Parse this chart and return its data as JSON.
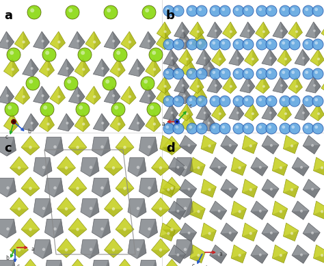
{
  "figure_width": 4.74,
  "figure_height": 3.89,
  "dpi": 100,
  "background_color": "#ffffff",
  "yellow_rgb": [
    0.78,
    0.82,
    0.15
  ],
  "yellow_dark_rgb": [
    0.55,
    0.58,
    0.05
  ],
  "gray_rgb": [
    0.52,
    0.54,
    0.56
  ],
  "gray_dark_rgb": [
    0.32,
    0.33,
    0.35
  ],
  "blue_rgb": [
    0.38,
    0.65,
    0.88
  ],
  "green_sphere_rgb": [
    0.55,
    0.85,
    0.08
  ],
  "panel_label_fontsize": 13,
  "axis_label_fontsize": 5.5,
  "axis_arrow_lw": 1.2
}
